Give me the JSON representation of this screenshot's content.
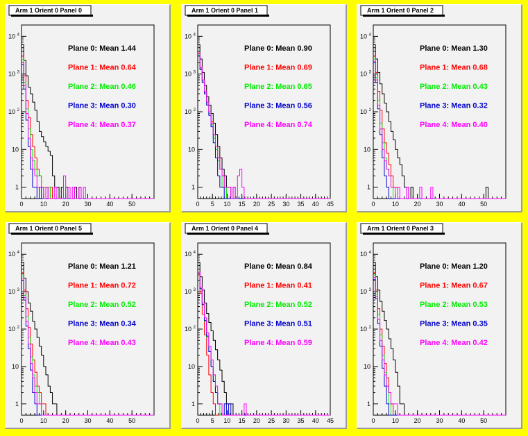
{
  "colors": {
    "plane0": "#000000",
    "plane1": "#ff0000",
    "plane2": "#00ee00",
    "plane3": "#0000cc",
    "plane4": "#ff00ff",
    "background": "#ffff00",
    "pad": "#f2f2f2"
  },
  "chart_data": [
    {
      "type": "histogram",
      "title": "Arm 1 Orient 0 Panel 0",
      "xlim": [
        0,
        60
      ],
      "x_ticks": [
        0,
        10,
        20,
        30,
        40,
        50
      ],
      "y_scale": "log",
      "ylim": [
        0.5,
        20000
      ],
      "y_ticks": [
        {
          "base": "10",
          "exp": "4"
        },
        {
          "base": "10",
          "exp": "3"
        },
        {
          "base": "10",
          "exp": "2"
        },
        {
          "base": "10",
          "exp": ""
        },
        {
          "base": "1",
          "exp": ""
        }
      ],
      "legend": [
        "Plane 0: Mean 1.44",
        "Plane 1: Mean 0.64",
        "Plane 2: Mean 0.46",
        "Plane 3: Mean 0.30",
        "Plane 4: Mean 0.37"
      ],
      "series": [
        {
          "values": [
            6000,
            2300,
            900,
            450,
            300,
            180,
            110,
            55,
            30,
            22,
            16,
            12,
            9,
            7,
            2,
            1,
            1,
            0,
            1,
            0,
            1,
            0,
            0,
            0,
            1,
            0,
            1
          ]
        },
        {
          "values": [
            3000,
            900,
            200,
            70,
            25,
            12,
            6,
            3,
            2,
            1,
            0,
            1,
            0,
            1
          ]
        },
        {
          "values": [
            2400,
            600,
            120,
            35,
            10,
            5,
            3,
            2,
            2,
            1,
            1,
            0,
            1
          ]
        },
        {
          "values": [
            1800,
            400,
            60,
            12,
            3,
            1,
            1,
            0,
            1
          ]
        },
        {
          "values": [
            2000,
            500,
            90,
            20,
            6,
            3,
            2,
            1,
            1,
            1,
            0,
            1,
            0,
            0,
            0,
            1,
            0,
            0,
            0,
            2,
            0,
            1,
            0,
            1,
            0,
            0,
            1,
            0,
            1
          ]
        }
      ]
    },
    {
      "type": "histogram",
      "title": "Arm 1 Orient 0 Panel 1",
      "xlim": [
        0,
        45
      ],
      "x_ticks": [
        0,
        5,
        10,
        15,
        20,
        25,
        30,
        35,
        40,
        45
      ],
      "y_scale": "log",
      "ylim": [
        0.5,
        20000
      ],
      "y_ticks": [
        {
          "base": "10",
          "exp": "4"
        },
        {
          "base": "10",
          "exp": "3"
        },
        {
          "base": "10",
          "exp": "2"
        },
        {
          "base": "10",
          "exp": ""
        },
        {
          "base": "1",
          "exp": ""
        }
      ],
      "legend": [
        "Plane 0: Mean 0.90",
        "Plane 1: Mean 0.69",
        "Plane 2: Mean 0.65",
        "Plane 3: Mean 0.56",
        "Plane 4: Mean 0.74"
      ],
      "series": [
        {
          "values": [
            6000,
            2500,
            1100,
            500,
            250,
            150,
            90,
            50,
            25,
            12,
            6,
            3,
            2,
            1,
            1,
            0,
            1
          ]
        },
        {
          "values": [
            3500,
            1500,
            700,
            350,
            180,
            100,
            55,
            25,
            12,
            6,
            3,
            2,
            1
          ]
        },
        {
          "values": [
            3200,
            1400,
            650,
            320,
            160,
            90,
            45,
            20,
            10,
            5,
            3,
            1,
            1
          ]
        },
        {
          "values": [
            3000,
            1300,
            600,
            300,
            150,
            80,
            40,
            15,
            6,
            2,
            1,
            1
          ]
        },
        {
          "values": [
            3600,
            1500,
            700,
            350,
            180,
            100,
            50,
            25,
            12,
            6,
            3,
            2,
            1,
            1,
            1,
            0,
            1,
            0,
            2,
            3,
            1
          ]
        }
      ]
    },
    {
      "type": "histogram",
      "title": "Arm 1 Orient 0 Panel 2",
      "xlim": [
        0,
        60
      ],
      "x_ticks": [
        0,
        10,
        20,
        30,
        40,
        50
      ],
      "y_scale": "log",
      "ylim": [
        0.5,
        20000
      ],
      "y_ticks": [
        {
          "base": "10",
          "exp": "4"
        },
        {
          "base": "10",
          "exp": "3"
        },
        {
          "base": "10",
          "exp": "2"
        },
        {
          "base": "10",
          "exp": ""
        },
        {
          "base": "1",
          "exp": ""
        }
      ],
      "legend": [
        "Plane 0: Mean 1.30",
        "Plane 1: Mean 0.68",
        "Plane 2: Mean 0.43",
        "Plane 3: Mean 0.32",
        "Plane 4: Mean 0.40"
      ],
      "series": [
        {
          "values": [
            6000,
            2500,
            1100,
            550,
            300,
            170,
            100,
            55,
            30,
            18,
            10,
            6,
            4,
            2,
            1,
            1,
            0,
            1,
            0,
            0,
            0,
            0,
            0,
            0,
            0,
            0,
            0,
            0,
            0,
            0,
            0,
            0,
            0,
            0,
            0,
            0,
            0,
            0,
            0,
            0,
            0,
            0,
            0,
            0,
            0,
            0,
            0,
            0,
            0,
            0,
            0,
            1
          ]
        },
        {
          "values": [
            3000,
            1100,
            350,
            110,
            35,
            15,
            8,
            4,
            2,
            1,
            1
          ]
        },
        {
          "values": [
            2500,
            800,
            200,
            50,
            15,
            6,
            3,
            2,
            1
          ]
        },
        {
          "values": [
            2000,
            600,
            120,
            25,
            6,
            2,
            1
          ]
        },
        {
          "values": [
            2200,
            700,
            150,
            35,
            10,
            5,
            3,
            2,
            1,
            1,
            0,
            1,
            0,
            0,
            0,
            1,
            0,
            0,
            0,
            0,
            0,
            1,
            0,
            0,
            0,
            0,
            1
          ]
        }
      ]
    },
    {
      "type": "histogram",
      "title": "Arm 1 Orient 0 Panel 5",
      "xlim": [
        0,
        60
      ],
      "x_ticks": [
        0,
        10,
        20,
        30,
        40,
        50
      ],
      "y_scale": "log",
      "ylim": [
        0.5,
        20000
      ],
      "y_ticks": [
        {
          "base": "10",
          "exp": "4"
        },
        {
          "base": "10",
          "exp": "3"
        },
        {
          "base": "10",
          "exp": "2"
        },
        {
          "base": "10",
          "exp": ""
        },
        {
          "base": "1",
          "exp": ""
        }
      ],
      "legend": [
        "Plane 0: Mean 1.21",
        "Plane 1: Mean 0.72",
        "Plane 2: Mean 0.52",
        "Plane 3: Mean 0.34",
        "Plane 4: Mean 0.43"
      ],
      "series": [
        {
          "values": [
            6000,
            2300,
            1000,
            500,
            300,
            160,
            100,
            60,
            35,
            20,
            10,
            6,
            3,
            2,
            1,
            1
          ]
        },
        {
          "values": [
            3200,
            1100,
            350,
            110,
            40,
            15,
            7,
            3,
            2,
            1,
            1
          ]
        },
        {
          "values": [
            2600,
            800,
            220,
            60,
            18,
            6,
            3,
            2,
            1
          ]
        },
        {
          "values": [
            2000,
            600,
            120,
            30,
            8,
            2,
            1
          ]
        },
        {
          "values": [
            2300,
            700,
            160,
            40,
            12,
            5,
            2,
            1,
            1
          ]
        }
      ]
    },
    {
      "type": "histogram",
      "title": "Arm 1 Orient 0 Panel 4",
      "xlim": [
        0,
        45
      ],
      "x_ticks": [
        0,
        5,
        10,
        15,
        20,
        25,
        30,
        35,
        40,
        45
      ],
      "y_scale": "log",
      "ylim": [
        0.5,
        20000
      ],
      "y_ticks": [
        {
          "base": "10",
          "exp": "4"
        },
        {
          "base": "10",
          "exp": "3"
        },
        {
          "base": "10",
          "exp": "2"
        },
        {
          "base": "10",
          "exp": ""
        },
        {
          "base": "1",
          "exp": ""
        }
      ],
      "legend": [
        "Plane 0: Mean 0.84",
        "Plane 1: Mean 0.41",
        "Plane 2: Mean 0.52",
        "Plane 3: Mean 0.51",
        "Plane 4: Mean 0.59"
      ],
      "series": [
        {
          "values": [
            6000,
            2500,
            1100,
            500,
            260,
            150,
            90,
            50,
            28,
            15,
            8,
            4,
            2,
            1,
            1,
            1
          ]
        },
        {
          "values": [
            2800,
            900,
            250,
            70,
            20,
            6,
            2,
            1
          ]
        },
        {
          "values": [
            3000,
            1200,
            450,
            160,
            60,
            25,
            10,
            4,
            2,
            1
          ]
        },
        {
          "values": [
            3000,
            1200,
            450,
            170,
            65,
            25,
            10,
            4,
            2,
            1,
            1,
            0,
            1,
            0,
            1
          ]
        },
        {
          "values": [
            3300,
            1300,
            500,
            200,
            80,
            35,
            15,
            6,
            3,
            1,
            1,
            0,
            0,
            0,
            0,
            0,
            0,
            0,
            0,
            0,
            0,
            1
          ]
        }
      ]
    },
    {
      "type": "histogram",
      "title": "Arm 1 Orient 0 Panel 3",
      "xlim": [
        0,
        60
      ],
      "x_ticks": [
        0,
        10,
        20,
        30,
        40,
        50
      ],
      "y_scale": "log",
      "ylim": [
        0.5,
        20000
      ],
      "y_ticks": [
        {
          "base": "10",
          "exp": "4"
        },
        {
          "base": "10",
          "exp": "3"
        },
        {
          "base": "10",
          "exp": "2"
        },
        {
          "base": "10",
          "exp": ""
        },
        {
          "base": "1",
          "exp": ""
        }
      ],
      "legend": [
        "Plane 0: Mean 1.20",
        "Plane 1: Mean 0.67",
        "Plane 2: Mean 0.53",
        "Plane 3: Mean 0.35",
        "Plane 4: Mean 0.42"
      ],
      "series": [
        {
          "values": [
            6000,
            2500,
            1100,
            550,
            300,
            170,
            100,
            55,
            30,
            15,
            7,
            3,
            1,
            1
          ]
        },
        {
          "values": [
            3200,
            1100,
            350,
            100,
            35,
            12,
            5,
            2,
            1
          ]
        },
        {
          "values": [
            2700,
            850,
            240,
            70,
            20,
            7,
            3,
            1
          ]
        },
        {
          "values": [
            2100,
            650,
            140,
            35,
            9,
            3,
            1
          ]
        },
        {
          "values": [
            2400,
            750,
            180,
            50,
            15,
            6,
            3,
            2,
            1,
            1,
            1
          ]
        }
      ]
    }
  ]
}
